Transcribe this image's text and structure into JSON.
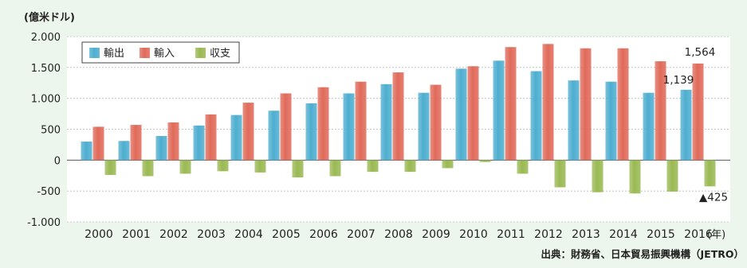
{
  "chart_data": {
    "type": "bar",
    "y_unit_label": "(億米ドル)",
    "x_unit_label": "(年)",
    "categories": [
      "2000",
      "2001",
      "2002",
      "2003",
      "2004",
      "2005",
      "2006",
      "2007",
      "2008",
      "2009",
      "2010",
      "2011",
      "2012",
      "2013",
      "2014",
      "2015",
      "2016"
    ],
    "series": [
      {
        "name": "輸出",
        "color": "#4eaed0",
        "values": [
          300,
          310,
          390,
          560,
          730,
          800,
          920,
          1080,
          1230,
          1090,
          1480,
          1610,
          1440,
          1290,
          1270,
          1090,
          1139
        ]
      },
      {
        "name": "輸入",
        "color": "#e06a5a",
        "values": [
          540,
          570,
          610,
          740,
          930,
          1080,
          1180,
          1270,
          1420,
          1220,
          1520,
          1830,
          1880,
          1810,
          1810,
          1600,
          1564
        ]
      },
      {
        "name": "収支",
        "color": "#9ab953",
        "values": [
          -240,
          -260,
          -220,
          -180,
          -200,
          -280,
          -260,
          -190,
          -190,
          -130,
          -30,
          -220,
          -440,
          -520,
          -540,
          -510,
          -425
        ]
      }
    ],
    "ylim": [
      -1000,
      2000
    ],
    "yticks": [
      -1000,
      -500,
      0,
      500,
      1000,
      1500,
      2000
    ],
    "ytick_labels": [
      "-1.000",
      "-500",
      "0",
      "500",
      "1.000",
      "1.500",
      "2.000"
    ],
    "annotations": [
      {
        "text": "1,564",
        "category": "2016",
        "series": "輸入"
      },
      {
        "text": "1,139",
        "category": "2016",
        "series": "輸出"
      },
      {
        "text": "▲425",
        "category": "2016",
        "series": "収支"
      }
    ],
    "grid": true,
    "legend_position": "top-left"
  },
  "source_note": "出典：財務省、日本貿易振興機構（JETRO）"
}
